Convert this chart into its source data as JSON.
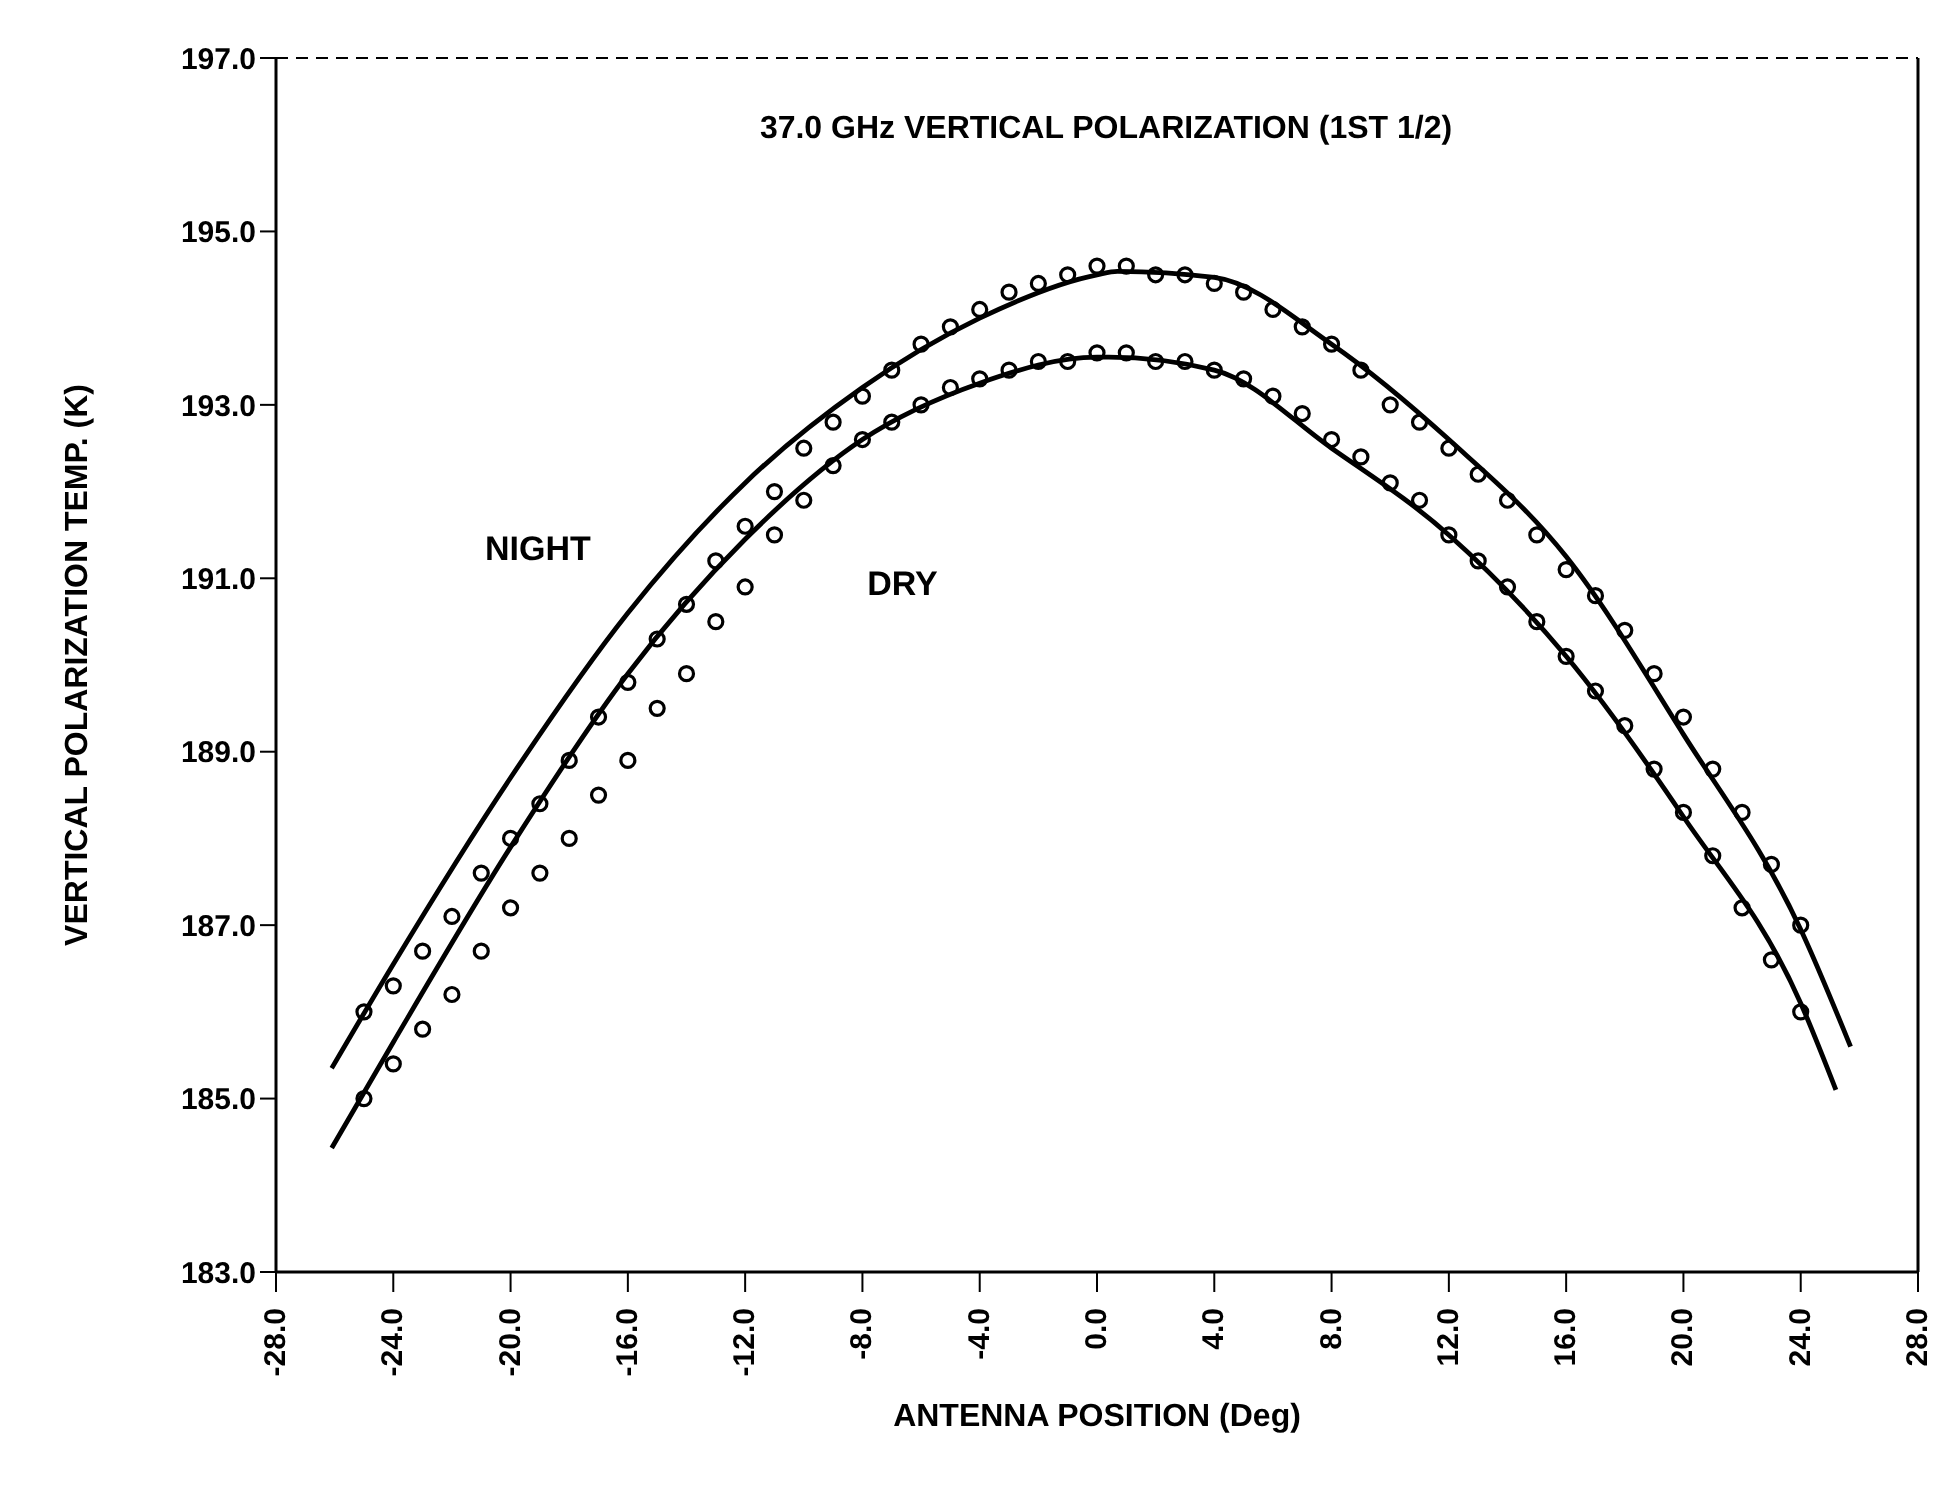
{
  "chart_data": {
    "type": "line",
    "title": "37.0 GHz VERTICAL POLARIZATION (1ST 1/2)",
    "xlabel": "ANTENNA POSITION (Deg)",
    "ylabel": "VERTICAL POLARIZATION TEMP. (K)",
    "xlim": [
      -28,
      28
    ],
    "xticks": [
      {
        "value": -28,
        "label": "-28.0"
      },
      {
        "value": -24,
        "label": "-24.0"
      },
      {
        "value": -20,
        "label": "-20.0"
      },
      {
        "value": -16,
        "label": "-16.0"
      },
      {
        "value": -12,
        "label": "-12.0"
      },
      {
        "value": -8,
        "label": "-8.0"
      },
      {
        "value": -4,
        "label": "-4.0"
      },
      {
        "value": 0,
        "label": "0.0"
      },
      {
        "value": 4,
        "label": "4.0"
      },
      {
        "value": 8,
        "label": "8.0"
      },
      {
        "value": 12,
        "label": "12.0"
      },
      {
        "value": 16,
        "label": "16.0"
      },
      {
        "value": 20,
        "label": "20.0"
      },
      {
        "value": 24,
        "label": "24.0"
      },
      {
        "value": 28,
        "label": "28.0"
      }
    ],
    "ylim": [
      183,
      197
    ],
    "yticks": [
      {
        "value": 183,
        "label": "183.0"
      },
      {
        "value": 185,
        "label": "185.0"
      },
      {
        "value": 187,
        "label": "187.0"
      },
      {
        "value": 189,
        "label": "189.0"
      },
      {
        "value": 191,
        "label": "191.0"
      },
      {
        "value": 193,
        "label": "193.0"
      },
      {
        "value": 195,
        "label": "195.0"
      },
      {
        "value": 197,
        "label": "197.0"
      }
    ],
    "grid": false,
    "series": [
      {
        "name": "NIGHT",
        "color": "#000000",
        "marker": "none",
        "line_style": "solid",
        "x": [
          -26.1,
          -24,
          -20,
          -16,
          -12,
          -8,
          -4,
          0,
          0.7,
          4,
          8,
          12,
          16,
          20,
          24,
          25.7
        ],
        "values": [
          185.35,
          186.55,
          188.7,
          190.6,
          192.1,
          193.2,
          194.0,
          194.5,
          194.54,
          194.47,
          193.7,
          192.6,
          191.25,
          189.2,
          186.95,
          185.6
        ]
      },
      {
        "name": "DRY",
        "color": "#000000",
        "marker": "none",
        "line_style": "solid",
        "x": [
          -26.1,
          -24,
          -20,
          -16,
          -12,
          -8,
          -4,
          0,
          0.4,
          4,
          8,
          12,
          16,
          20,
          24,
          25.2
        ],
        "values": [
          184.43,
          185.65,
          187.9,
          189.9,
          191.45,
          192.6,
          193.25,
          193.55,
          193.55,
          193.4,
          192.5,
          191.5,
          190.1,
          188.25,
          186.1,
          185.1
        ]
      },
      {
        "type": "scatter",
        "color": "#000000",
        "marker": "circle",
        "x": [
          -25,
          -24,
          -23,
          -22,
          -21,
          -20,
          -19,
          -18,
          -17,
          -16,
          -15,
          -14,
          -13,
          -12,
          -11,
          -10,
          -9,
          -8,
          -7,
          -6,
          -5,
          -4,
          -3,
          -2,
          -1,
          0,
          1,
          2,
          3,
          4,
          5,
          6,
          7,
          8,
          9,
          10,
          11,
          12,
          13,
          14,
          15,
          16,
          17,
          18,
          19,
          20,
          21,
          22,
          23,
          24
        ],
        "values": [
          186.0,
          186.3,
          186.7,
          187.1,
          187.6,
          188.0,
          188.4,
          188.9,
          189.4,
          189.8,
          190.3,
          190.7,
          191.2,
          191.6,
          192.0,
          192.5,
          192.8,
          193.1,
          193.4,
          193.7,
          193.9,
          194.1,
          194.3,
          194.4,
          194.5,
          194.6,
          194.6,
          194.5,
          194.5,
          194.4,
          194.3,
          194.1,
          193.9,
          193.7,
          193.4,
          193.0,
          192.8,
          192.5,
          192.2,
          191.9,
          191.5,
          191.1,
          190.8,
          190.4,
          189.9,
          189.4,
          188.8,
          188.3,
          187.7,
          187.0
        ]
      },
      {
        "type": "scatter",
        "color": "#000000",
        "marker": "circle",
        "x": [
          -25,
          -24,
          -23,
          -22,
          -21,
          -20,
          -19,
          -18,
          -17,
          -16,
          -15,
          -14,
          -13,
          -12,
          -11,
          -10,
          -9,
          -8,
          -7,
          -6,
          -5,
          -4,
          -3,
          -2,
          -1,
          0,
          1,
          2,
          3,
          4,
          5,
          6,
          7,
          8,
          9,
          10,
          11,
          12,
          13,
          14,
          15,
          16,
          17,
          18,
          19,
          20,
          21,
          22,
          23,
          24
        ],
        "values": [
          185.0,
          185.4,
          185.8,
          186.2,
          186.7,
          187.2,
          187.6,
          188.0,
          188.5,
          188.9,
          189.5,
          189.9,
          190.5,
          190.9,
          191.5,
          191.9,
          192.3,
          192.6,
          192.8,
          193.0,
          193.2,
          193.3,
          193.4,
          193.5,
          193.5,
          193.6,
          193.6,
          193.5,
          193.5,
          193.4,
          193.3,
          193.1,
          192.9,
          192.6,
          192.4,
          192.1,
          191.9,
          191.5,
          191.2,
          190.9,
          190.5,
          190.1,
          189.7,
          189.3,
          188.8,
          188.3,
          187.8,
          187.2,
          186.6,
          186.0
        ]
      }
    ]
  }
}
